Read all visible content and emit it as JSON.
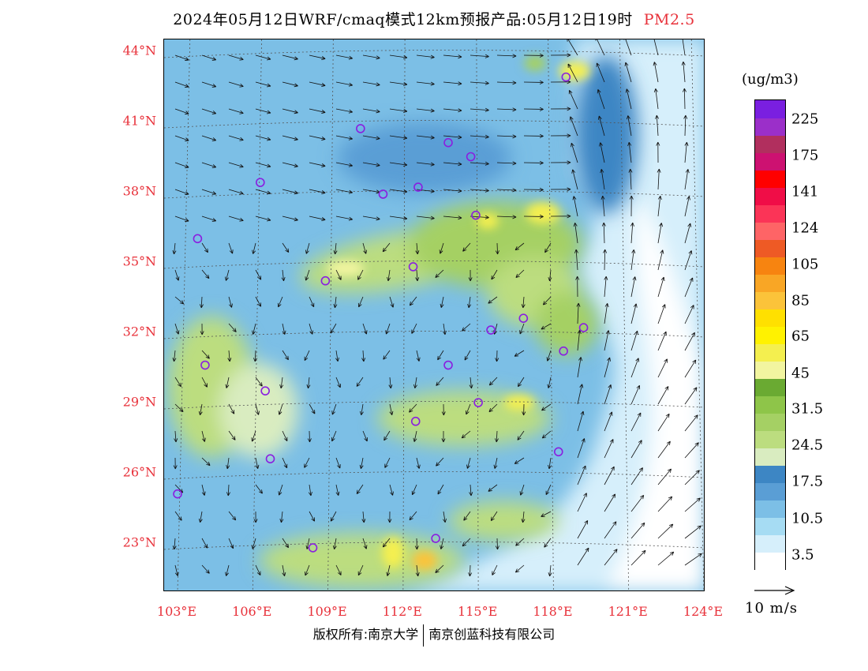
{
  "header": {
    "title": "2024年05月12日WRF/cmaq模式12km预报产品:05月12日19时",
    "variable": "PM2.5"
  },
  "axes": {
    "lat_labels": [
      "44°N",
      "41°N",
      "38°N",
      "35°N",
      "32°N",
      "29°N",
      "26°N",
      "23°N"
    ],
    "lon_labels": [
      "103°E",
      "106°E",
      "109°E",
      "112°E",
      "115°E",
      "118°E",
      "121°E",
      "124°E"
    ],
    "lat_values": [
      44,
      41,
      38,
      35,
      32,
      29,
      26,
      23
    ],
    "lon_values": [
      103,
      106,
      109,
      112,
      115,
      118,
      121,
      124
    ],
    "label_color": "#e8313a"
  },
  "colorbar": {
    "unit": "(ug/m3)",
    "colors": [
      "#ffffff",
      "#d6effb",
      "#a6dcf3",
      "#7cbfe6",
      "#5a9ed5",
      "#3d86c4",
      "#d9ecc0",
      "#bcdd7f",
      "#a5d064",
      "#8ec549",
      "#6aaa32",
      "#f2f5a0",
      "#f4ef4f",
      "#fff200",
      "#ffe000",
      "#fbc33a",
      "#f9a625",
      "#f78410",
      "#ee5a25",
      "#fe6466",
      "#fb3457",
      "#f00d47",
      "#ff0000",
      "#cd1171",
      "#b12f5e",
      "#9b2fc9",
      "#7a1fe0"
    ],
    "labels": [
      "3.5",
      "10.5",
      "17.5",
      "24.5",
      "31.5",
      "45",
      "65",
      "85",
      "105",
      "124",
      "141",
      "175",
      "225"
    ]
  },
  "map": {
    "cities": [
      {
        "lon": 110.3,
        "lat": 40.7
      },
      {
        "lon": 113.8,
        "lat": 40.1
      },
      {
        "lon": 114.7,
        "lat": 39.5
      },
      {
        "lon": 112.6,
        "lat": 38.2
      },
      {
        "lon": 111.2,
        "lat": 37.9
      },
      {
        "lon": 106.3,
        "lat": 38.4
      },
      {
        "lon": 114.9,
        "lat": 37.0
      },
      {
        "lon": 103.8,
        "lat": 36.0
      },
      {
        "lon": 112.4,
        "lat": 34.8
      },
      {
        "lon": 108.9,
        "lat": 34.2
      },
      {
        "lon": 116.8,
        "lat": 32.6
      },
      {
        "lon": 115.5,
        "lat": 32.1
      },
      {
        "lon": 119.2,
        "lat": 32.2
      },
      {
        "lon": 118.4,
        "lat": 31.2
      },
      {
        "lon": 113.8,
        "lat": 30.6
      },
      {
        "lon": 104.1,
        "lat": 30.6
      },
      {
        "lon": 106.5,
        "lat": 29.5
      },
      {
        "lon": 115.0,
        "lat": 29.0
      },
      {
        "lon": 112.5,
        "lat": 28.2
      },
      {
        "lon": 118.2,
        "lat": 26.9
      },
      {
        "lon": 106.7,
        "lat": 26.6
      },
      {
        "lon": 103.0,
        "lat": 25.1
      },
      {
        "lon": 113.3,
        "lat": 23.2
      },
      {
        "lon": 108.4,
        "lat": 22.8
      },
      {
        "lon": 118.5,
        "lat": 42.9
      }
    ]
  },
  "wind_reference": {
    "label": "10 m/s"
  },
  "footer": {
    "copyright_left": "版权所有:南京大学",
    "copyright_right": "南京创蓝科技有限公司"
  }
}
